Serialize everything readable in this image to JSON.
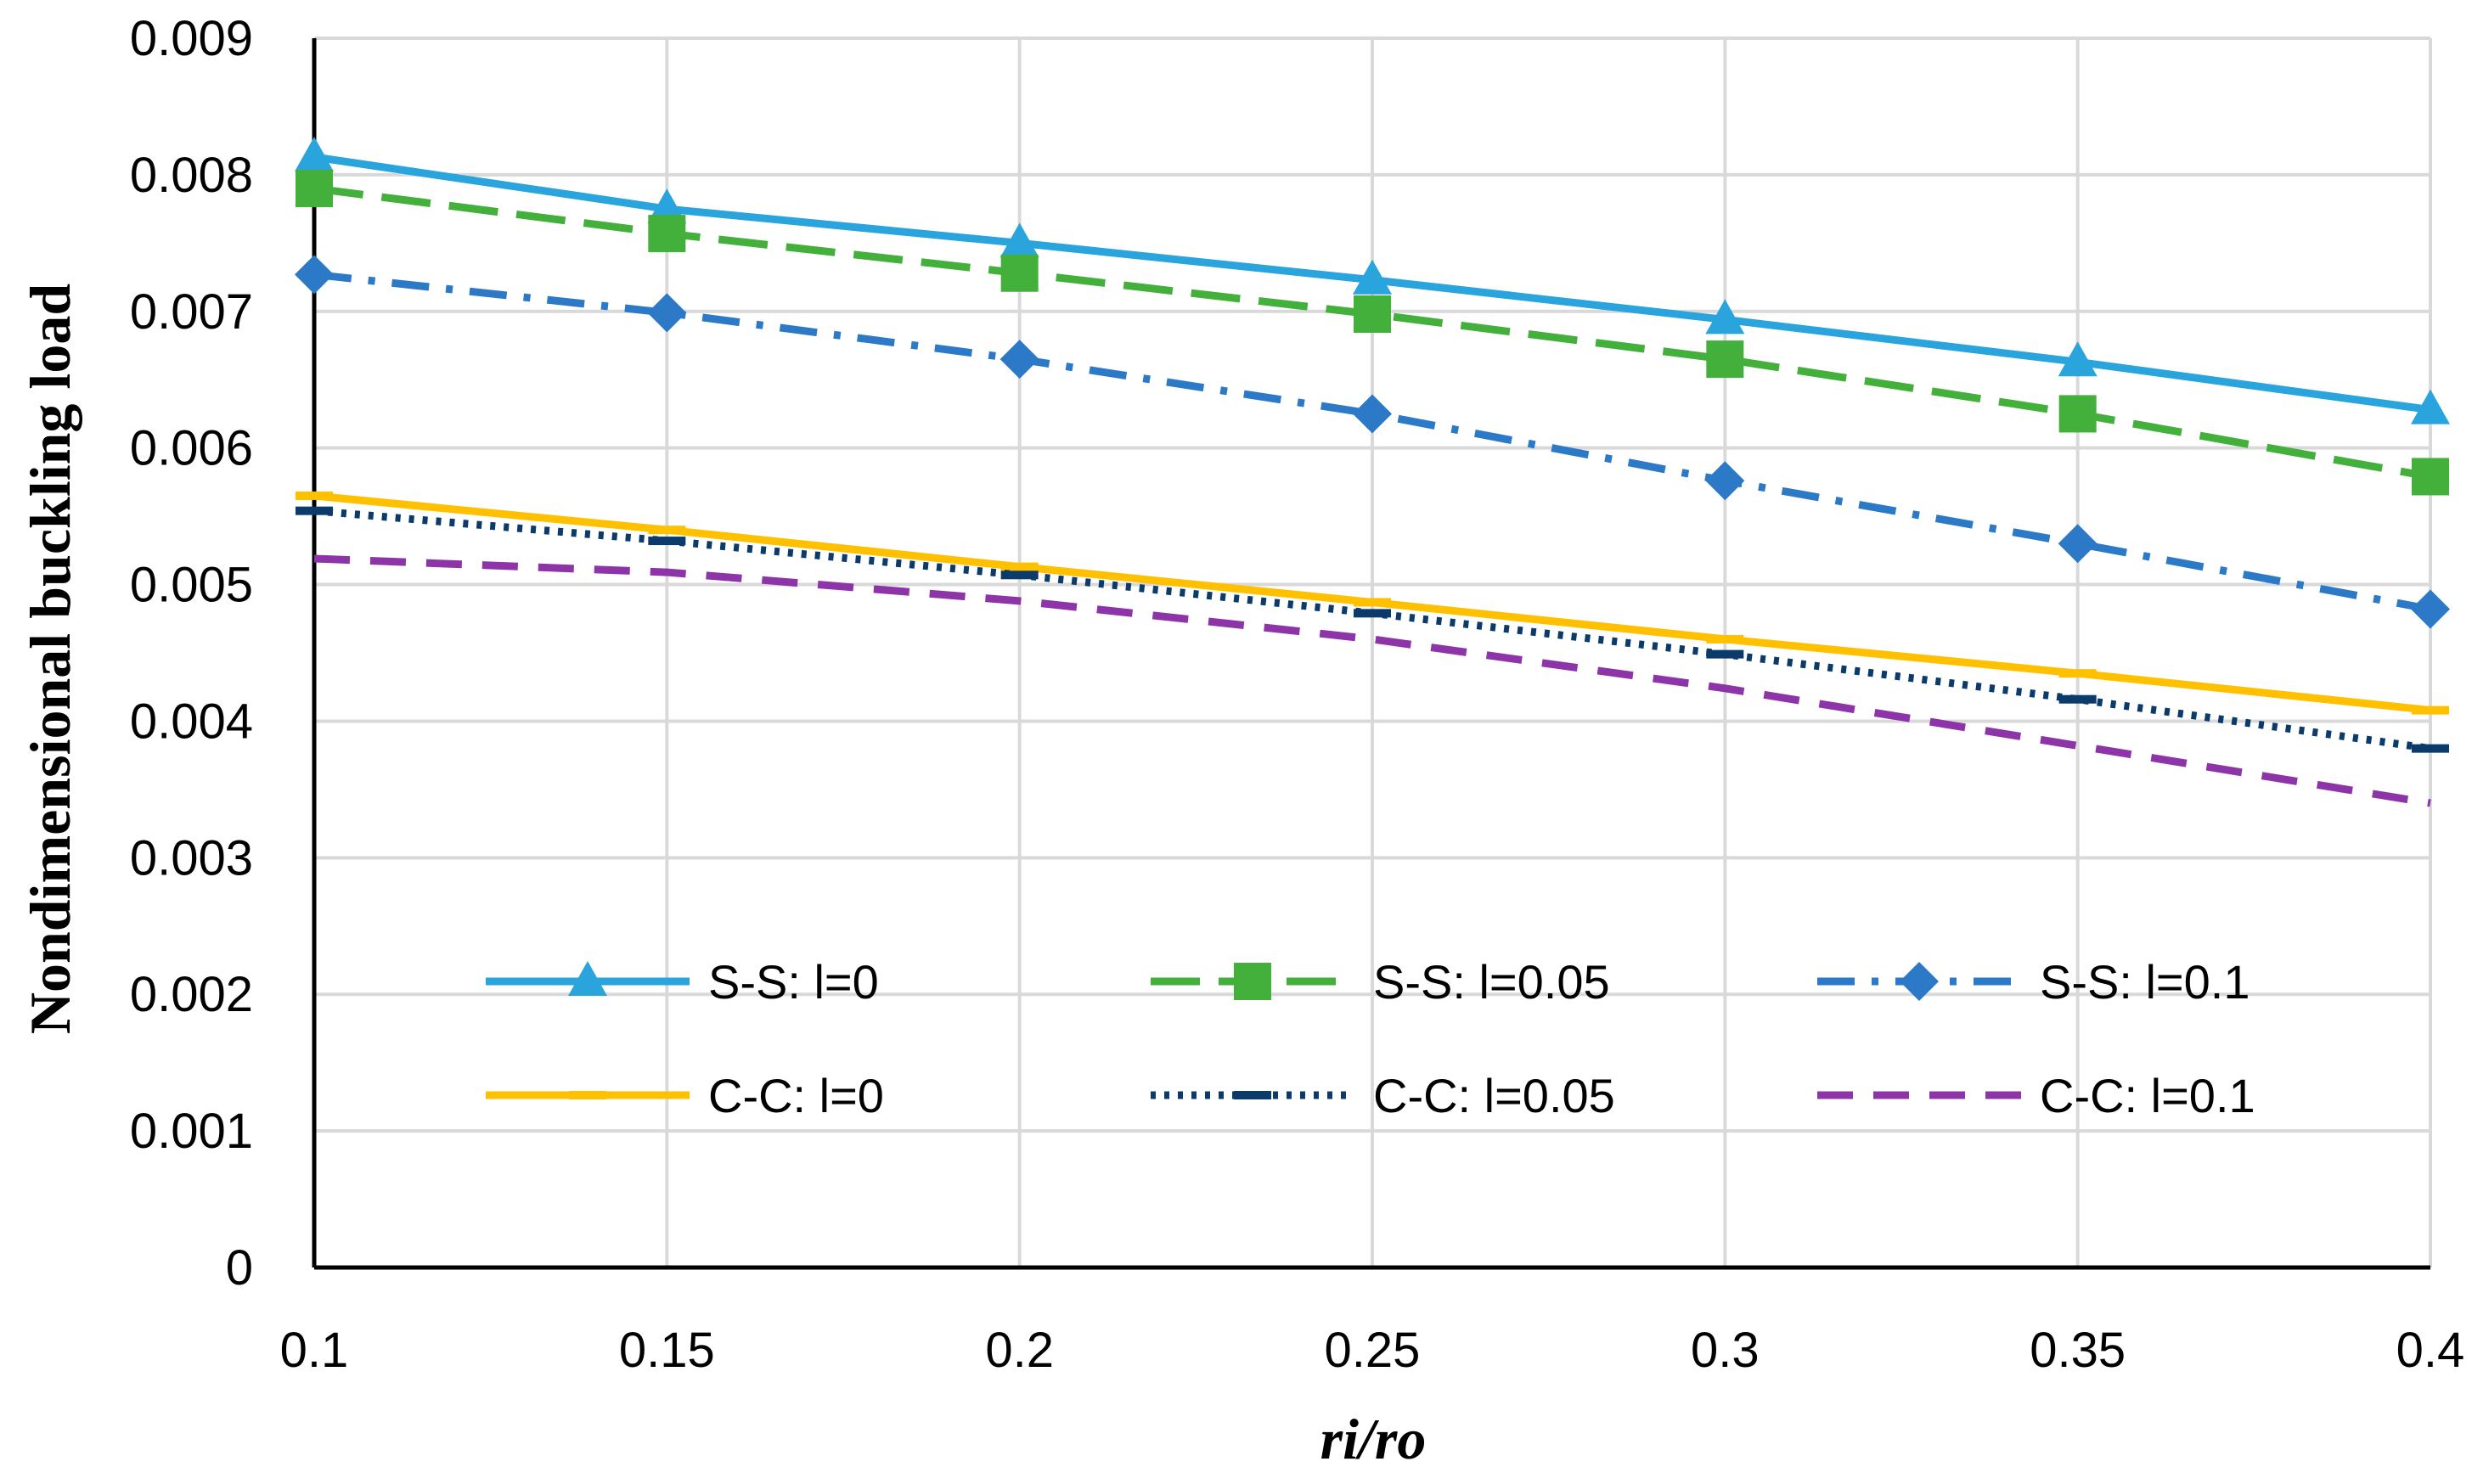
{
  "chart_data": {
    "type": "line",
    "title": "",
    "xlabel": "ri/ro",
    "ylabel": "Nondimensional buckling load",
    "x": [
      0.1,
      0.15,
      0.2,
      0.25,
      0.3,
      0.35,
      0.4
    ],
    "x_tick_labels": [
      "0.1",
      "0.15",
      "0.2",
      "0.25",
      "0.3",
      "0.35",
      "0.4"
    ],
    "y_tick_labels": [
      "0",
      "0.001",
      "0.002",
      "0.003",
      "0.004",
      "0.005",
      "0.006",
      "0.007",
      "0.008",
      "0.009"
    ],
    "xlim": [
      0.1,
      0.4
    ],
    "ylim": [
      0,
      0.009
    ],
    "grid": true,
    "legend_position": "inside-lower-center",
    "series": [
      {
        "name": "S-S: l=0",
        "color": "#2aa4dc",
        "dash": "solid",
        "marker": "triangle",
        "values": [
          0.00813,
          0.00775,
          0.0075,
          0.00723,
          0.00694,
          0.00663,
          0.00628
        ]
      },
      {
        "name": "S-S: l=0.05",
        "color": "#43b03b",
        "dash": "longdash",
        "marker": "square",
        "values": [
          0.0079,
          0.00757,
          0.00728,
          0.00698,
          0.00665,
          0.00625,
          0.00579
        ]
      },
      {
        "name": "S-S: l=0.1",
        "color": "#2b79c7",
        "dash": "dashdot",
        "marker": "diamond",
        "values": [
          0.00727,
          0.00699,
          0.00665,
          0.00625,
          0.00576,
          0.0053,
          0.00482
        ]
      },
      {
        "name": "C-C: l=0",
        "color": "#ffc000",
        "dash": "solid",
        "marker": "dash",
        "values": [
          0.00565,
          0.0054,
          0.00513,
          0.00487,
          0.0046,
          0.00435,
          0.00408
        ]
      },
      {
        "name": "C-C: l=0.05",
        "color": "#0b3b6b",
        "dash": "dotted",
        "marker": "dash",
        "values": [
          0.00554,
          0.00532,
          0.00507,
          0.00479,
          0.00449,
          0.00416,
          0.0038
        ]
      },
      {
        "name": "C-C: l=0.1",
        "color": "#8d35a8",
        "dash": "dashed",
        "marker": "none",
        "values": [
          0.00519,
          0.00509,
          0.00488,
          0.0046,
          0.00424,
          0.00382,
          0.0034
        ]
      }
    ]
  }
}
